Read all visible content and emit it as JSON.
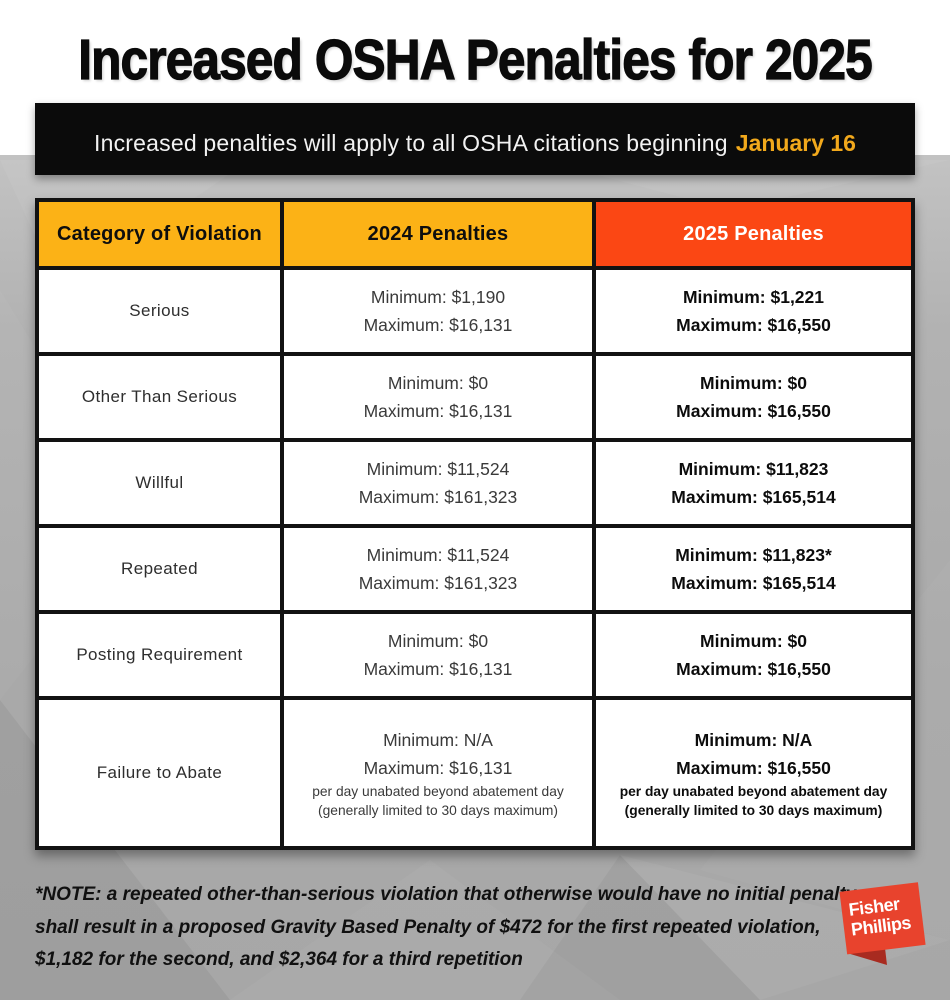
{
  "title": "Increased OSHA Penalties for 2025",
  "banner": {
    "text": "Increased penalties will apply to all OSHA citations beginning",
    "highlight": "January 16"
  },
  "table": {
    "columns": [
      "Category of Violation",
      "2024 Penalties",
      "2025 Penalties"
    ],
    "rows": [
      {
        "category": "Serious",
        "p2024": [
          "Minimum: $1,190",
          "Maximum: $16,131"
        ],
        "p2025": [
          "Minimum: $1,221",
          "Maximum: $16,550"
        ]
      },
      {
        "category": "Other Than Serious",
        "p2024": [
          "Minimum: $0",
          "Maximum: $16,131"
        ],
        "p2025": [
          "Minimum: $0",
          "Maximum: $16,550"
        ]
      },
      {
        "category": "Willful",
        "p2024": [
          "Minimum: $11,524",
          "Maximum: $161,323"
        ],
        "p2025": [
          "Minimum: $11,823",
          "Maximum: $165,514"
        ]
      },
      {
        "category": "Repeated",
        "p2024": [
          "Minimum: $11,524",
          "Maximum: $161,323"
        ],
        "p2025": [
          "Minimum: $11,823*",
          "Maximum: $165,514"
        ]
      },
      {
        "category": "Posting Requirement",
        "p2024": [
          "Minimum: $0",
          "Maximum: $16,131"
        ],
        "p2025": [
          "Minimum: $0",
          "Maximum: $16,550"
        ]
      },
      {
        "category": "Failure to Abate",
        "p2024": [
          "Minimum: N/A",
          "Maximum: $16,131",
          "per day unabated beyond abatement day",
          "(generally limited to 30 days maximum)"
        ],
        "p2025": [
          "Minimum: N/A",
          "Maximum: $16,550",
          "per day unabated beyond abatement day",
          "(generally limited to 30 days maximum)"
        ]
      }
    ]
  },
  "note": {
    "lines": [
      "*NOTE: a repeated other-than-serious violation that otherwise would have no initial penalty",
      "shall result in a proposed Gravity Based Penalty of $472 for the first repeated violation,",
      "$1,182 for the second, and $2,364 for a third repetition"
    ]
  },
  "logo": {
    "line1": "Fisher",
    "line2": "Phillips"
  },
  "colors": {
    "header_yellow": "#fcb216",
    "header_red": "#fb4714",
    "banner_bg": "#0b0b0b",
    "banner_highlight": "#f2a91c",
    "logo_red": "#e8432d",
    "logo_fold": "#a82b20",
    "background_gray": "#adadad",
    "table_border": "#121212"
  }
}
